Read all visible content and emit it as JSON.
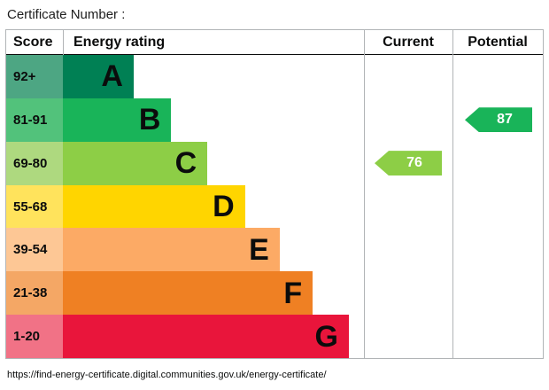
{
  "page": {
    "title": "Certificate Number :",
    "footer_url": "https://find-energy-certificate.digital.communities.gov.uk/energy-certificate/"
  },
  "headers": {
    "score": "Score",
    "rating": "Energy rating",
    "current": "Current",
    "potential": "Potential"
  },
  "bands": [
    {
      "range": "92+",
      "letter": "A",
      "color": "#008054",
      "tint": "#4da683",
      "width_pct": 23.5
    },
    {
      "range": "81-91",
      "letter": "B",
      "color": "#19b459",
      "tint": "#52c27b",
      "width_pct": 36
    },
    {
      "range": "69-80",
      "letter": "C",
      "color": "#8dce46",
      "tint": "#aed97f",
      "width_pct": 48
    },
    {
      "range": "55-68",
      "letter": "D",
      "color": "#ffd500",
      "tint": "#ffe35c",
      "width_pct": 60.5
    },
    {
      "range": "39-54",
      "letter": "E",
      "color": "#fcaa65",
      "tint": "#fdc795",
      "width_pct": 72
    },
    {
      "range": "21-38",
      "letter": "F",
      "color": "#ef8023",
      "tint": "#f4a765",
      "width_pct": 83
    },
    {
      "range": "1-20",
      "letter": "G",
      "color": "#e9153b",
      "tint": "#f17286",
      "width_pct": 95
    }
  ],
  "current": {
    "value": "76",
    "band": "C",
    "color": "#8dce46",
    "row": 2
  },
  "potential": {
    "value": "87",
    "band": "B",
    "color": "#19b459",
    "row": 1
  },
  "chart_data": {
    "type": "bar",
    "title": "Energy rating",
    "categories": [
      "A",
      "B",
      "C",
      "D",
      "E",
      "F",
      "G"
    ],
    "score_ranges": [
      "92+",
      "81-91",
      "69-80",
      "55-68",
      "39-54",
      "21-38",
      "1-20"
    ],
    "band_colors": [
      "#008054",
      "#19b459",
      "#8dce46",
      "#ffd500",
      "#fcaa65",
      "#ef8023",
      "#e9153b"
    ],
    "markers": [
      {
        "name": "Current",
        "value": 76,
        "band": "C"
      },
      {
        "name": "Potential",
        "value": 87,
        "band": "B"
      }
    ],
    "legend_position": "top",
    "grid": false
  }
}
